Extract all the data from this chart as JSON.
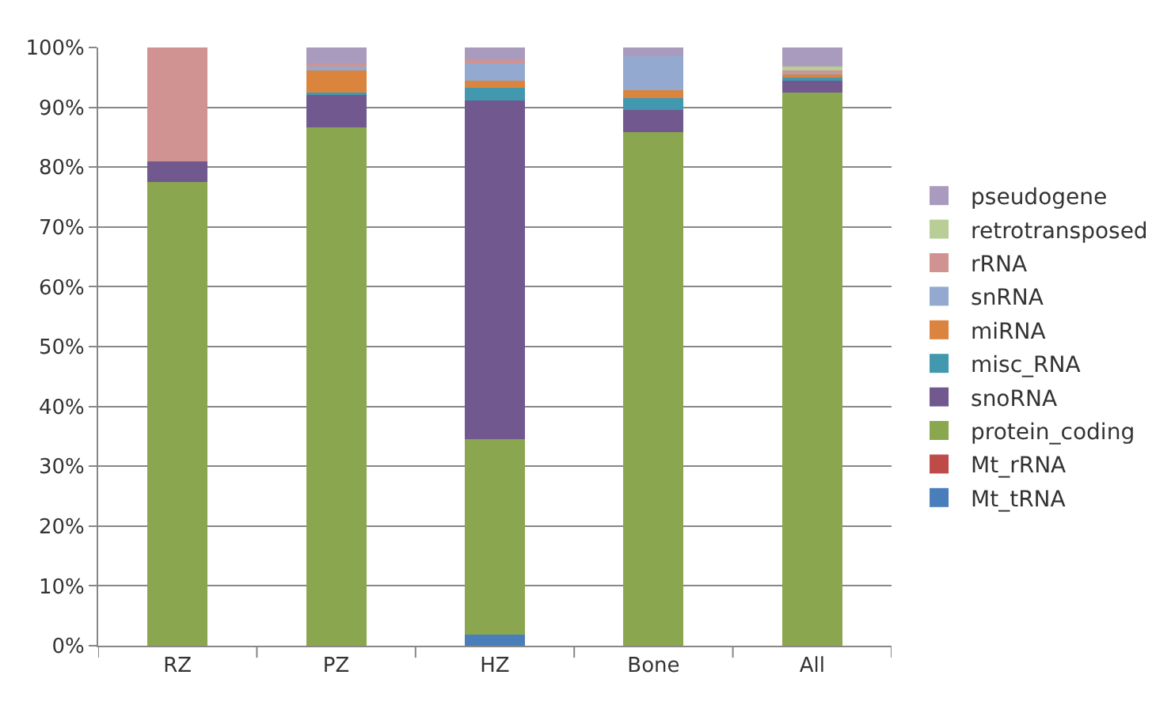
{
  "chart_data": {
    "type": "bar",
    "stacked": true,
    "categories": [
      "RZ",
      "PZ",
      "HZ",
      "Bone",
      "All"
    ],
    "series": [
      {
        "name": "Mt_tRNA",
        "color": "#4a7ebb",
        "values": [
          0,
          0,
          1.8,
          0,
          0
        ]
      },
      {
        "name": "Mt_rRNA",
        "color": "#be4b48",
        "values": [
          0,
          0,
          0,
          0,
          0
        ]
      },
      {
        "name": "protein_coding",
        "color": "#8aa64e",
        "values": [
          77.5,
          86.7,
          32.7,
          85.8,
          92.4
        ]
      },
      {
        "name": "snoRNA",
        "color": "#71588f",
        "values": [
          3.4,
          5.4,
          56.7,
          3.7,
          2.1
        ]
      },
      {
        "name": "misc_RNA",
        "color": "#4198af",
        "values": [
          0,
          0.4,
          2.1,
          2.1,
          0.7
        ]
      },
      {
        "name": "miRNA",
        "color": "#db843d",
        "values": [
          0,
          3.7,
          1.2,
          1.2,
          0.5
        ]
      },
      {
        "name": "snRNA",
        "color": "#93a9cf",
        "values": [
          0,
          0.7,
          3.0,
          5.7,
          0.3
        ]
      },
      {
        "name": "rRNA",
        "color": "#d19392",
        "values": [
          19.1,
          0.4,
          0.4,
          0,
          0.2
        ]
      },
      {
        "name": "retrotransposed",
        "color": "#b9cd96",
        "values": [
          0,
          0,
          0,
          0,
          0.6
        ]
      },
      {
        "name": "pseudogene",
        "color": "#a99bbd",
        "values": [
          0,
          2.7,
          2.1,
          1.5,
          3.2
        ]
      }
    ],
    "ylim": [
      0,
      100
    ],
    "yticks": [
      {
        "value": 0,
        "label": "0%"
      },
      {
        "value": 10,
        "label": "10%"
      },
      {
        "value": 20,
        "label": "20%"
      },
      {
        "value": 30,
        "label": "30%"
      },
      {
        "value": 40,
        "label": "40%"
      },
      {
        "value": 50,
        "label": "50%"
      },
      {
        "value": 60,
        "label": "60%"
      },
      {
        "value": 70,
        "label": "70%"
      },
      {
        "value": 80,
        "label": "80%"
      },
      {
        "value": 90,
        "label": "90%"
      },
      {
        "value": 100,
        "label": "100%"
      }
    ],
    "grid": "y",
    "legend": "right"
  }
}
